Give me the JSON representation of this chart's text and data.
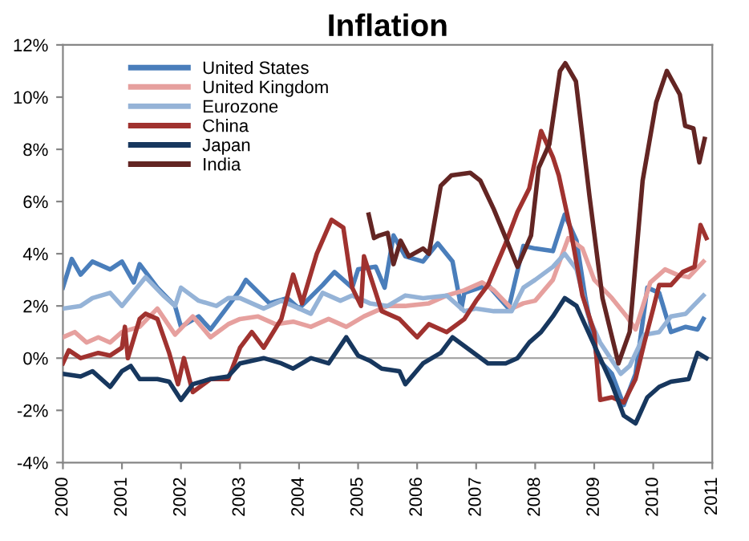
{
  "chart_data": {
    "type": "line",
    "title": "Inflation",
    "xlim": [
      2000,
      2011
    ],
    "xticks": [
      2000,
      2001,
      2002,
      2003,
      2004,
      2005,
      2006,
      2007,
      2008,
      2009,
      2010,
      2011
    ],
    "ylim": [
      -4,
      12
    ],
    "yticks": [
      {
        "value": -4,
        "label": "-4%"
      },
      {
        "value": -2,
        "label": "-2%"
      },
      {
        "value": 0,
        "label": "0%"
      },
      {
        "value": 2,
        "label": "2%"
      },
      {
        "value": 4,
        "label": "4%"
      },
      {
        "value": 6,
        "label": "6%"
      },
      {
        "value": 8,
        "label": "8%"
      },
      {
        "value": 10,
        "label": "10%"
      },
      {
        "value": 12,
        "label": "12%"
      }
    ],
    "grid": false,
    "legend": "top left",
    "marker": "none",
    "line_style": "solid",
    "ref_lines": [
      {
        "axis": "y",
        "value": 0,
        "color": "#a6a6a6"
      }
    ],
    "series": [
      {
        "name": "United States",
        "color": "#4a7ebb",
        "x": [
          2000.0,
          2000.15,
          2000.3,
          2000.5,
          2000.8,
          2001.0,
          2001.2,
          2001.3,
          2001.6,
          2001.9,
          2002.0,
          2002.3,
          2002.5,
          2002.8,
          2003.0,
          2003.1,
          2003.5,
          2003.8,
          2004.0,
          2004.4,
          2004.6,
          2004.9,
          2005.0,
          2005.3,
          2005.45,
          2005.6,
          2005.8,
          2006.1,
          2006.35,
          2006.6,
          2006.75,
          2006.8,
          2007.2,
          2007.55,
          2007.8,
          2008.0,
          2008.3,
          2008.5,
          2008.7,
          2008.85,
          2009.05,
          2009.3,
          2009.5,
          2009.7,
          2009.9,
          2010.1,
          2010.3,
          2010.55,
          2010.75,
          2010.85
        ],
        "values": [
          2.7,
          3.8,
          3.2,
          3.7,
          3.4,
          3.7,
          2.9,
          3.6,
          2.7,
          2.0,
          1.2,
          1.6,
          1.1,
          2.0,
          2.6,
          3.0,
          2.1,
          2.3,
          1.9,
          2.8,
          3.3,
          2.7,
          3.4,
          3.5,
          2.7,
          4.7,
          3.9,
          3.7,
          4.4,
          3.7,
          1.9,
          2.5,
          2.8,
          1.9,
          4.3,
          4.2,
          4.1,
          5.5,
          4.5,
          2.3,
          0.0,
          -0.6,
          -1.8,
          -0.6,
          2.7,
          2.5,
          1.0,
          1.2,
          1.1,
          1.5
        ]
      },
      {
        "name": "United Kingdom",
        "color": "#e6a09e",
        "x": [
          2000.0,
          2000.2,
          2000.4,
          2000.6,
          2000.8,
          2001.0,
          2001.3,
          2001.6,
          2001.9,
          2002.2,
          2002.5,
          2002.8,
          2003.0,
          2003.3,
          2003.6,
          2003.9,
          2004.2,
          2004.5,
          2004.8,
          2005.1,
          2005.5,
          2005.8,
          2006.2,
          2006.5,
          2006.8,
          2007.1,
          2007.3,
          2007.6,
          2007.8,
          2008.0,
          2008.3,
          2008.56,
          2008.8,
          2009.0,
          2009.3,
          2009.55,
          2009.7,
          2009.95,
          2010.2,
          2010.4,
          2010.6,
          2010.85
        ],
        "values": [
          0.8,
          1.0,
          0.6,
          0.8,
          0.6,
          1.0,
          1.2,
          1.9,
          0.9,
          1.6,
          0.8,
          1.3,
          1.5,
          1.6,
          1.3,
          1.4,
          1.2,
          1.5,
          1.2,
          1.6,
          2.0,
          2.0,
          2.1,
          2.4,
          2.6,
          2.9,
          2.6,
          1.9,
          2.1,
          2.2,
          3.0,
          4.6,
          4.2,
          3.0,
          2.3,
          1.6,
          1.1,
          2.9,
          3.4,
          3.2,
          3.1,
          3.7
        ]
      },
      {
        "name": "Eurozone",
        "color": "#95b3d7",
        "x": [
          2000.0,
          2000.3,
          2000.5,
          2000.8,
          2001.0,
          2001.4,
          2001.7,
          2001.9,
          2002.0,
          2002.3,
          2002.6,
          2002.8,
          2003.0,
          2003.4,
          2003.7,
          2003.9,
          2004.2,
          2004.4,
          2004.7,
          2004.9,
          2005.2,
          2005.5,
          2005.8,
          2006.1,
          2006.5,
          2006.8,
          2007.0,
          2007.3,
          2007.6,
          2007.8,
          2008.0,
          2008.3,
          2008.5,
          2008.7,
          2008.9,
          2009.1,
          2009.45,
          2009.6,
          2009.85,
          2010.1,
          2010.3,
          2010.55,
          2010.85
        ],
        "values": [
          1.9,
          2.0,
          2.3,
          2.5,
          2.0,
          3.1,
          2.4,
          2.0,
          2.7,
          2.2,
          2.0,
          2.3,
          2.3,
          1.9,
          2.2,
          2.0,
          1.7,
          2.5,
          2.2,
          2.4,
          2.1,
          2.0,
          2.4,
          2.3,
          2.4,
          1.8,
          1.9,
          1.8,
          1.8,
          2.7,
          3.0,
          3.5,
          4.0,
          3.4,
          1.6,
          0.6,
          -0.6,
          -0.3,
          0.9,
          1.0,
          1.6,
          1.7,
          2.4
        ]
      },
      {
        "name": "China",
        "color": "#a0322f",
        "x": [
          2000.0,
          2000.1,
          2000.3,
          2000.6,
          2000.8,
          2001.0,
          2001.05,
          2001.1,
          2001.3,
          2001.4,
          2001.6,
          2001.8,
          2001.95,
          2002.05,
          2002.2,
          2002.5,
          2002.8,
          2003.0,
          2003.2,
          2003.4,
          2003.7,
          2003.9,
          2004.05,
          2004.3,
          2004.55,
          2004.75,
          2004.9,
          2005.05,
          2005.1,
          2005.4,
          2005.7,
          2006.0,
          2006.2,
          2006.5,
          2006.8,
          2007.0,
          2007.2,
          2007.5,
          2007.7,
          2007.9,
          2008.1,
          2008.3,
          2008.4,
          2008.6,
          2008.8,
          2009.0,
          2009.1,
          2009.3,
          2009.5,
          2009.7,
          2009.85,
          2010.0,
          2010.1,
          2010.3,
          2010.5,
          2010.7,
          2010.8,
          2010.9
        ],
        "values": [
          -0.2,
          0.3,
          0.0,
          0.2,
          0.1,
          0.4,
          1.2,
          0.0,
          1.5,
          1.7,
          1.5,
          0.2,
          -1.0,
          0.0,
          -1.3,
          -0.8,
          -0.8,
          0.4,
          1.0,
          0.4,
          1.5,
          3.2,
          2.1,
          4.0,
          5.3,
          5.0,
          2.7,
          2.0,
          3.9,
          1.8,
          1.5,
          0.8,
          1.3,
          1.0,
          1.5,
          2.2,
          2.8,
          4.4,
          5.6,
          6.5,
          8.7,
          7.7,
          7.0,
          4.9,
          2.4,
          1.0,
          -1.6,
          -1.5,
          -1.7,
          -0.8,
          0.6,
          1.9,
          2.8,
          2.8,
          3.3,
          3.5,
          5.1,
          4.6
        ]
      },
      {
        "name": "Japan",
        "color": "#17375e",
        "x": [
          2000.0,
          2000.3,
          2000.5,
          2000.8,
          2001.0,
          2001.15,
          2001.3,
          2001.6,
          2001.8,
          2002.0,
          2002.2,
          2002.5,
          2002.8,
          2003.0,
          2003.4,
          2003.7,
          2003.9,
          2004.2,
          2004.5,
          2004.8,
          2005.0,
          2005.2,
          2005.4,
          2005.7,
          2005.8,
          2006.1,
          2006.4,
          2006.6,
          2006.9,
          2007.2,
          2007.5,
          2007.7,
          2007.9,
          2008.1,
          2008.3,
          2008.5,
          2008.7,
          2008.9,
          2009.1,
          2009.3,
          2009.5,
          2009.7,
          2009.9,
          2010.1,
          2010.3,
          2010.6,
          2010.75,
          2010.9
        ],
        "values": [
          -0.6,
          -0.7,
          -0.5,
          -1.1,
          -0.5,
          -0.3,
          -0.8,
          -0.8,
          -0.9,
          -1.6,
          -1.0,
          -0.8,
          -0.7,
          -0.2,
          0.0,
          -0.2,
          -0.4,
          0.0,
          -0.2,
          0.8,
          0.1,
          -0.1,
          -0.4,
          -0.5,
          -1.0,
          -0.2,
          0.2,
          0.8,
          0.3,
          -0.2,
          -0.2,
          0.0,
          0.6,
          1.0,
          1.6,
          2.3,
          2.0,
          1.0,
          0.0,
          -1.0,
          -2.2,
          -2.5,
          -1.5,
          -1.1,
          -0.9,
          -0.8,
          0.2,
          0.0
        ]
      },
      {
        "name": "India",
        "color": "#632523",
        "x": [
          2005.18,
          2005.27,
          2005.36,
          2005.5,
          2005.6,
          2005.72,
          2005.86,
          2006.1,
          2006.2,
          2006.4,
          2006.58,
          2006.9,
          2007.07,
          2007.3,
          2007.52,
          2007.7,
          2007.93,
          2008.06,
          2008.24,
          2008.42,
          2008.51,
          2008.69,
          2008.92,
          2009.14,
          2009.41,
          2009.6,
          2009.82,
          2010.05,
          2010.23,
          2010.45,
          2010.54,
          2010.68,
          2010.78,
          2010.87
        ],
        "values": [
          5.5,
          4.6,
          4.7,
          4.8,
          3.6,
          4.5,
          3.9,
          4.2,
          4.0,
          6.6,
          7.0,
          7.1,
          6.8,
          5.7,
          4.5,
          3.5,
          4.7,
          7.3,
          8.2,
          11.0,
          11.3,
          10.6,
          6.2,
          2.3,
          -0.2,
          1.0,
          6.8,
          9.8,
          11.0,
          10.1,
          8.9,
          8.8,
          7.5,
          8.4
        ]
      }
    ]
  }
}
